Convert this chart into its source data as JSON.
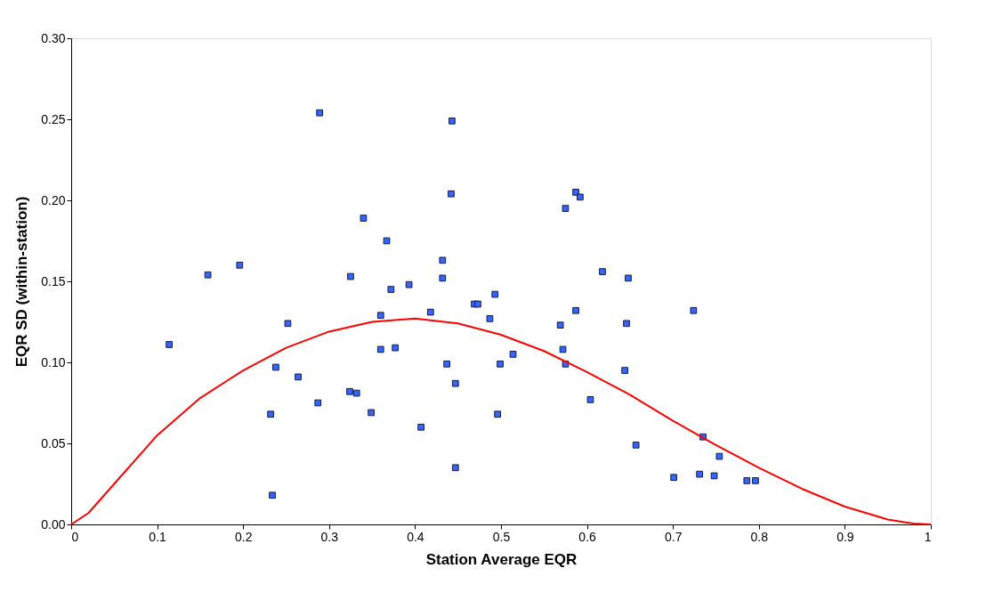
{
  "chart_data": {
    "type": "scatter",
    "xlabel": "Station Average EQR",
    "ylabel": "EQR SD (within-station)",
    "xlim": [
      0,
      1
    ],
    "xticks": [
      0,
      0.1,
      0.2,
      0.3,
      0.4,
      0.5,
      0.6,
      0.7,
      0.8,
      0.9,
      1
    ],
    "ylim": [
      0,
      0.3
    ],
    "yticks": [
      {
        "value": 0,
        "label": "0.00"
      },
      {
        "value": 0.05,
        "label": "0.05"
      },
      {
        "value": 0.1,
        "label": "0.10"
      },
      {
        "value": 0.15,
        "label": "0.15"
      },
      {
        "value": 0.2,
        "label": "0.20"
      },
      {
        "value": 0.25,
        "label": "0.25"
      },
      {
        "value": 0.3,
        "label": "0.30"
      }
    ],
    "series": [
      {
        "marker": "square",
        "color": "#3366ff",
        "x": [
          0.114,
          0.159,
          0.196,
          0.252,
          0.232,
          0.238,
          0.264,
          0.289,
          0.287,
          0.325,
          0.324,
          0.332,
          0.34,
          0.349,
          0.234,
          0.36,
          0.36,
          0.367,
          0.372,
          0.377,
          0.393,
          0.407,
          0.418,
          0.432,
          0.432,
          0.437,
          0.443,
          0.442,
          0.447,
          0.447,
          0.469,
          0.473,
          0.487,
          0.493,
          0.496,
          0.499,
          0.514,
          0.569,
          0.575,
          0.572,
          0.575,
          0.587,
          0.592,
          0.587,
          0.604,
          0.618,
          0.644,
          0.646,
          0.648,
          0.657,
          0.701,
          0.724,
          0.735,
          0.731,
          0.748,
          0.754,
          0.786,
          0.796
        ],
        "values": [
          0.111,
          0.154,
          0.16,
          0.124,
          0.068,
          0.097,
          0.091,
          0.254,
          0.075,
          0.153,
          0.082,
          0.081,
          0.189,
          0.069,
          0.018,
          0.129,
          0.108,
          0.175,
          0.145,
          0.109,
          0.148,
          0.06,
          0.131,
          0.163,
          0.152,
          0.099,
          0.249,
          0.204,
          0.087,
          0.035,
          0.136,
          0.136,
          0.127,
          0.142,
          0.068,
          0.099,
          0.105,
          0.123,
          0.195,
          0.108,
          0.099,
          0.205,
          0.202,
          0.132,
          0.077,
          0.156,
          0.095,
          0.124,
          0.152,
          0.049,
          0.029,
          0.132,
          0.054,
          0.031,
          0.03,
          0.042,
          0.027,
          0.027
        ]
      },
      {
        "type": "line",
        "marker": "none",
        "line_style": "solid",
        "color": "#ff0000",
        "x": [
          0,
          0.02,
          0.05,
          0.1,
          0.15,
          0.2,
          0.25,
          0.3,
          0.35,
          0.4,
          0.45,
          0.5,
          0.55,
          0.6,
          0.65,
          0.7,
          0.75,
          0.8,
          0.85,
          0.9,
          0.95,
          0.98,
          1
        ],
        "values": [
          0,
          0.007,
          0.025,
          0.055,
          0.078,
          0.095,
          0.109,
          0.119,
          0.125,
          0.127,
          0.124,
          0.117,
          0.107,
          0.094,
          0.08,
          0.064,
          0.049,
          0.035,
          0.022,
          0.011,
          0.003,
          0.0005,
          0
        ]
      }
    ]
  }
}
